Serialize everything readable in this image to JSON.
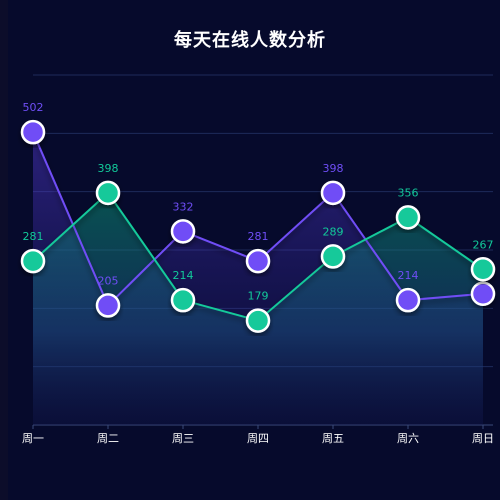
{
  "chart_data": {
    "type": "line",
    "title": "每天在线人数分析",
    "categories": [
      "周一",
      "周二",
      "周三",
      "周四",
      "周五",
      "周六",
      "周日"
    ],
    "ylim": [
      0,
      600
    ],
    "grid": true,
    "series": [
      {
        "values": [
          502,
          205,
          332,
          281,
          398,
          214,
          225
        ],
        "labels": [
          "502",
          "205",
          "332",
          "281",
          "398",
          "214",
          ""
        ],
        "color": "#6f4ef6"
      },
      {
        "values": [
          281,
          398,
          214,
          179,
          289,
          356,
          267
        ],
        "labels": [
          "281",
          "398",
          "214",
          "179",
          "289",
          "356",
          "267"
        ],
        "color": "#12c99a"
      }
    ]
  }
}
